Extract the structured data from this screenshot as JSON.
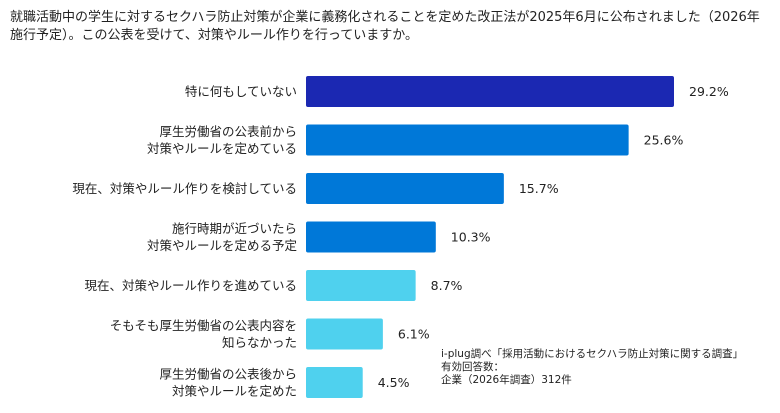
{
  "title": "就職活動中の学生に対するセクハラ防止対策が企業に義務化されることを定めた改正法が2025年6月に公布されました（2026年施行予定）。この公表を受けて、対策やルール作りを行っていますか。",
  "chart_data": {
    "type": "bar",
    "orientation": "horizontal",
    "title": "就職活動中の学生に対するセクハラ防止対策が企業に義務化されることを定めた改正法が2025年6月に公布されました（2026年施行予定）。この公表を受けて、対策やルール作りを行っていますか。",
    "categories": [
      [
        "特に何もしていない"
      ],
      [
        "厚生労働省の公表前から",
        "対策やルールを定めている"
      ],
      [
        "現在、対策やルール作りを検討している"
      ],
      [
        "施行時期が近づいたら",
        "対策やルールを定める予定"
      ],
      [
        "現在、対策やルール作りを進めている"
      ],
      [
        "そもそも厚生労働省の公表内容を",
        "知らなかった"
      ],
      [
        "厚生労働省の公表後から",
        "対策やルールを定めた"
      ]
    ],
    "values": [
      29.2,
      25.6,
      15.7,
      10.3,
      8.7,
      6.1,
      4.5
    ],
    "value_labels": [
      "29.2%",
      "25.6%",
      "15.7%",
      "10.3%",
      "8.7%",
      "6.1%",
      "4.5%"
    ],
    "unit": "%",
    "colors": [
      "#1b28b2",
      "#0078d8",
      "#0078d8",
      "#0078d8",
      "#4fd1ee",
      "#4fd1ee",
      "#4fd1ee"
    ],
    "grid": false,
    "legend": "none"
  },
  "note": [
    "i-plug調べ「採用活動におけるセクハラ防止対策に関する調査」",
    "有効回答数：",
    "企業（2026年調査）312件"
  ]
}
